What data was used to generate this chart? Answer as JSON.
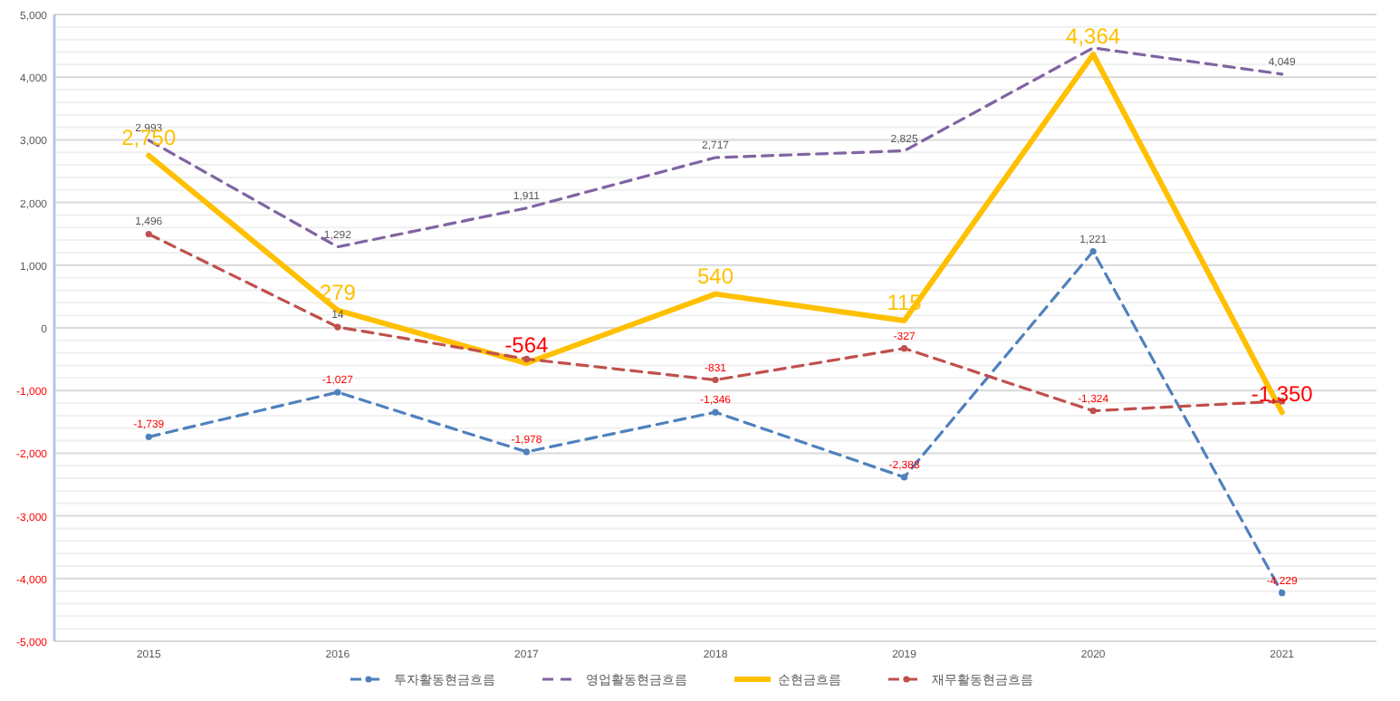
{
  "chart_data": {
    "type": "line",
    "categories": [
      "2015",
      "2016",
      "2017",
      "2018",
      "2019",
      "2020",
      "2021"
    ],
    "series": [
      {
        "name": "투자활동현금흐름",
        "color": "#4f81bd",
        "line_style": "dashed",
        "marker": "circle",
        "values": [
          -1739,
          -1027,
          -1978,
          -1346,
          -2383,
          1221,
          -4229
        ],
        "value_labels": [
          "-1,739",
          "-1,027",
          "-1,978",
          "-1,346",
          "-2,383",
          "1,221",
          "-4,229"
        ]
      },
      {
        "name": "영업활동현금흐름",
        "color": "#8064a2",
        "line_style": "dashed",
        "marker": "none",
        "values": [
          2993,
          1292,
          1911,
          2717,
          2825,
          4467,
          4049
        ],
        "value_labels": [
          "2,993",
          "1,292",
          "1,911",
          "2,717",
          "2,825",
          null,
          "4,049"
        ]
      },
      {
        "name": "순현금흐름",
        "color": "#ffc000",
        "line_style": "solid",
        "marker": "none",
        "values": [
          2750,
          279,
          -564,
          540,
          115,
          4364,
          -1350
        ],
        "value_labels": [
          "2,750",
          "279",
          "-564",
          "540",
          "115",
          "4,364",
          "-1,350"
        ]
      },
      {
        "name": "재무활동현금흐름",
        "color": "#c0504d",
        "line_style": "dashed",
        "marker": "circle",
        "values": [
          1496,
          14,
          -497,
          -831,
          -327,
          -1324,
          -1170
        ],
        "value_labels": [
          "1,496",
          "14",
          null,
          "-831",
          "-327",
          "-1,324",
          null
        ]
      }
    ],
    "ylim": [
      -5000,
      5000
    ],
    "yticks": [
      {
        "value": -5000,
        "label": "-5,000"
      },
      {
        "value": -4000,
        "label": "-4,000"
      },
      {
        "value": -3000,
        "label": "-3,000"
      },
      {
        "value": -2000,
        "label": "-2,000"
      },
      {
        "value": -1000,
        "label": "-1,000"
      },
      0,
      {
        "value": 1000,
        "label": "1,000"
      },
      {
        "value": 2000,
        "label": "2,000"
      },
      {
        "value": 3000,
        "label": "3,000"
      },
      {
        "value": 4000,
        "label": "4,000"
      },
      {
        "value": 5000,
        "label": "5,000"
      }
    ],
    "grid": "y",
    "legend": "bottom"
  }
}
